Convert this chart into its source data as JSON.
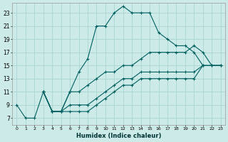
{
  "xlabel": "Humidex (Indice chaleur)",
  "bg_color": "#cceae7",
  "grid_color": "#aad4d0",
  "line_color": "#006060",
  "xlim": [
    -0.5,
    23.5
  ],
  "ylim": [
    6.0,
    24.5
  ],
  "xticks": [
    0,
    1,
    2,
    3,
    4,
    5,
    6,
    7,
    8,
    9,
    10,
    11,
    12,
    13,
    14,
    15,
    16,
    17,
    18,
    19,
    20,
    21,
    22,
    23
  ],
  "yticks": [
    7,
    9,
    11,
    13,
    15,
    17,
    19,
    21,
    23
  ],
  "series": [
    {
      "x": [
        0,
        1,
        2,
        3,
        4,
        5,
        6,
        7,
        8,
        9,
        10,
        11,
        12,
        13,
        14,
        15,
        16,
        17,
        18,
        19,
        20,
        21
      ],
      "y": [
        9,
        7,
        7,
        11,
        8,
        8,
        11,
        14,
        16,
        21,
        21,
        23,
        24,
        23,
        23,
        23,
        20,
        19,
        18,
        18,
        17,
        15
      ]
    },
    {
      "x": [
        3,
        4,
        5,
        6,
        7,
        8,
        9,
        10,
        11,
        12,
        13,
        14,
        15,
        16,
        17,
        18,
        19,
        20,
        21,
        22,
        23
      ],
      "y": [
        11,
        8,
        8,
        11,
        11,
        12,
        13,
        14,
        14,
        15,
        15,
        16,
        17,
        17,
        17,
        17,
        17,
        18,
        17,
        15,
        15
      ]
    },
    {
      "x": [
        3,
        4,
        5,
        6,
        7,
        8,
        9,
        10,
        11,
        12,
        13,
        14,
        15,
        16,
        17,
        18,
        19,
        20,
        21,
        22,
        23
      ],
      "y": [
        11,
        8,
        8,
        9,
        9,
        9,
        10,
        11,
        12,
        13,
        13,
        14,
        14,
        14,
        14,
        14,
        14,
        14,
        15,
        15,
        15
      ]
    },
    {
      "x": [
        3,
        4,
        5,
        6,
        7,
        8,
        9,
        10,
        11,
        12,
        13,
        14,
        15,
        16,
        17,
        18,
        19,
        20,
        21,
        22,
        23
      ],
      "y": [
        11,
        8,
        8,
        8,
        8,
        8,
        9,
        10,
        11,
        12,
        12,
        13,
        13,
        13,
        13,
        13,
        13,
        13,
        15,
        15,
        15
      ]
    }
  ]
}
